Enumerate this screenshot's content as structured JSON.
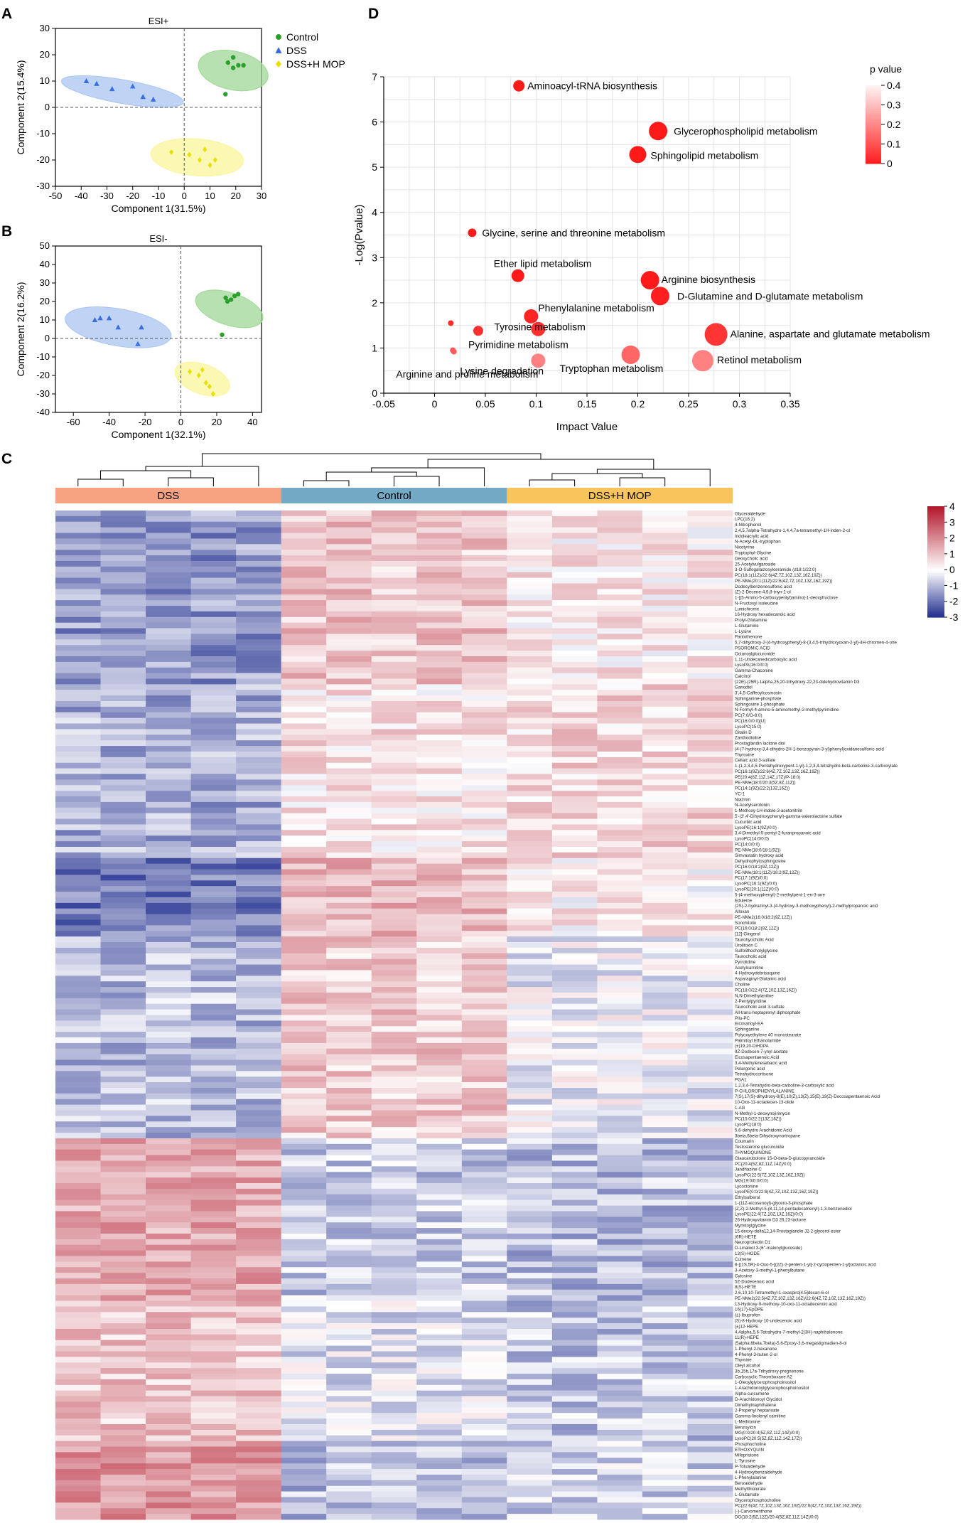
{
  "panels": {
    "a": {
      "label": "A",
      "chart_data": {
        "type": "scatter",
        "title": "ESI+",
        "xlabel": "Component 1(31.5%)",
        "ylabel": "Component 2(15.4%)",
        "xlim": [
          -50,
          30
        ],
        "ylim": [
          -30,
          30
        ],
        "xticks": [
          -50,
          -40,
          -30,
          -20,
          -10,
          0,
          10,
          20,
          30
        ],
        "yticks": [
          -30,
          -20,
          -10,
          0,
          10,
          20,
          30
        ],
        "series": [
          {
            "name": "Control",
            "color": "#2ca02c",
            "ellipse_color": "#9fd796",
            "marker": "circle",
            "x": [
              17,
              19,
              21,
              23,
              19,
              16
            ],
            "y": [
              17,
              15,
              16,
              16,
              19,
              5
            ],
            "ellipse": {
              "cx": 19,
              "cy": 14,
              "rx": 7.5,
              "ry": 13.5,
              "angle": 78
            }
          },
          {
            "name": "DSS",
            "color": "#3b6fe0",
            "ellipse_color": "#a9c5f2",
            "marker": "triangle",
            "x": [
              -38,
              -34,
              -28,
              -20,
              -16,
              -12
            ],
            "y": [
              10,
              9,
              7,
              8,
              4,
              3
            ],
            "ellipse": {
              "cx": -24,
              "cy": 6,
              "rx": 24,
              "ry": 4.5,
              "angle": -10
            }
          },
          {
            "name": "DSS+H MOP",
            "color": "#e8e000",
            "ellipse_color": "#faf59a",
            "marker": "diamond",
            "x": [
              -5,
              2,
              6,
              8,
              10,
              12
            ],
            "y": [
              -17,
              -18,
              -20,
              -16,
              -22,
              -20
            ],
            "ellipse": {
              "cx": 5,
              "cy": -19,
              "rx": 18,
              "ry": 7,
              "angle": -5
            }
          }
        ]
      }
    },
    "b": {
      "label": "B",
      "chart_data": {
        "type": "scatter",
        "title": "ESI-",
        "xlabel": "Component 1(32.1%)",
        "ylabel": "Component 2(16.2%)",
        "xlim": [
          -70,
          45
        ],
        "ylim": [
          -40,
          50
        ],
        "xticks": [
          -60,
          -40,
          -20,
          0,
          20,
          40
        ],
        "yticks": [
          -40,
          -30,
          -20,
          -10,
          0,
          10,
          20,
          30,
          40,
          50
        ],
        "series": [
          {
            "name": "Control",
            "color": "#2ca02c",
            "ellipse_color": "#9fd796",
            "marker": "circle",
            "x": [
              25,
              28,
              30,
              32,
              26,
              23
            ],
            "y": [
              22,
              21,
              23,
              24,
              20,
              2
            ],
            "ellipse": {
              "cx": 27,
              "cy": 16,
              "rx": 9,
              "ry": 19,
              "angle": 72
            }
          },
          {
            "name": "DSS",
            "color": "#3b6fe0",
            "ellipse_color": "#a9c5f2",
            "marker": "triangle",
            "x": [
              -48,
              -45,
              -40,
              -35,
              -22,
              -24
            ],
            "y": [
              10,
              11,
              11,
              6,
              6,
              -3
            ],
            "ellipse": {
              "cx": -35,
              "cy": 6,
              "rx": 30,
              "ry": 10,
              "angle": -10
            }
          },
          {
            "name": "DSS+H MOP",
            "color": "#e8e000",
            "ellipse_color": "#faf59a",
            "marker": "diamond",
            "x": [
              5,
              10,
              12,
              16,
              14,
              18
            ],
            "y": [
              -18,
              -20,
              -17,
              -26,
              -24,
              -30
            ],
            "ellipse": {
              "cx": 12,
              "cy": -22,
              "rx": 16,
              "ry": 8,
              "angle": -20
            }
          }
        ]
      }
    },
    "d": {
      "label": "D",
      "chart_data": {
        "type": "scatter",
        "xlabel": "Impact Value",
        "ylabel": "-Log(Pvalue)",
        "xlim": [
          -0.05,
          0.35
        ],
        "ylim": [
          0,
          7
        ],
        "xticks": [
          -0.05,
          0,
          0.05,
          0.1,
          0.15,
          0.2,
          0.25,
          0.3,
          0.35
        ],
        "yticks": [
          0,
          1,
          2,
          3,
          4,
          5,
          6,
          7
        ],
        "colorbar": {
          "title": "p value",
          "ticks": [
            0.4,
            0.3,
            0.2,
            0.1,
            0
          ],
          "low_color": "#ff1a1a",
          "high_color": "#fff2f2"
        },
        "points": [
          {
            "name": "Aminoacyl-tRNA biosynthesis",
            "impact": 0.083,
            "logp": 6.8,
            "p": 0.0,
            "size": 6
          },
          {
            "name": "Glycerophospholipid metabolism",
            "impact": 0.22,
            "logp": 5.8,
            "p": 0.0,
            "size": 11
          },
          {
            "name": "Sphingolipid metabolism",
            "impact": 0.2,
            "logp": 5.28,
            "p": 0.0,
            "size": 10
          },
          {
            "name": "Glycine, serine and threonine metabolism",
            "impact": 0.037,
            "logp": 3.55,
            "p": 0.0,
            "size": 4
          },
          {
            "name": "Ether lipid metabolism",
            "impact": 0.082,
            "logp": 2.6,
            "p": 0.0,
            "size": 7
          },
          {
            "name": "Arginine biosynthesis",
            "impact": 0.212,
            "logp": 2.5,
            "p": 0.0,
            "size": 11
          },
          {
            "name": "D-Glutamine and D-glutamate metabolism",
            "impact": 0.222,
            "logp": 2.15,
            "p": 0.01,
            "size": 11
          },
          {
            "name": "Phenylalanine metabolism",
            "impact": 0.095,
            "logp": 1.7,
            "p": 0.02,
            "size": 8
          },
          {
            "name": "Tyrosine metabolism",
            "impact": 0.102,
            "logp": 1.42,
            "p": 0.04,
            "size": 8
          },
          {
            "name": "Alanine, aspartate and glutamate metabolism",
            "impact": 0.277,
            "logp": 1.3,
            "p": 0.05,
            "size": 14
          },
          {
            "name": "Pyrimidine metabolism",
            "impact": 0.043,
            "logp": 1.38,
            "p": 0.04,
            "size": 5
          },
          {
            "name": "Tryptophan metabolism",
            "impact": 0.193,
            "logp": 0.85,
            "p": 0.14,
            "size": 11
          },
          {
            "name": "Retinol metabolism",
            "impact": 0.264,
            "logp": 0.72,
            "p": 0.19,
            "size": 13
          },
          {
            "name": "Arginine and proline metabolism",
            "impact": 0.102,
            "logp": 0.72,
            "p": 0.19,
            "size": 8
          },
          {
            "name": "Lysine degradation",
            "impact": 0.018,
            "logp": 0.95,
            "p": 0.11,
            "size": 2
          },
          {
            "name": "",
            "impact": 0.016,
            "logp": 1.55,
            "p": 0.03,
            "size": 2
          },
          {
            "name": "",
            "impact": 0.019,
            "logp": 0.92,
            "p": 0.12,
            "size": 2
          }
        ]
      }
    },
    "c": {
      "label": "C",
      "chart_data": {
        "type": "heatmap",
        "groups": [
          {
            "name": "DSS",
            "color": "#f7a382",
            "columns": 5
          },
          {
            "name": "Control",
            "color": "#74a9c6",
            "columns": 5
          },
          {
            "name": "DSS+H MOP",
            "color": "#f9c45b",
            "columns": 5
          }
        ],
        "color_scale": {
          "min": -3,
          "max": 4,
          "ticks": [
            4,
            3,
            2,
            1,
            0,
            -1,
            -2,
            -3
          ],
          "low_color": "#1c2a8c",
          "mid_color": "#ffffff",
          "high_color": "#b2182b"
        },
        "profiles": [
          [
            -1.4,
            1.0,
            0.4
          ],
          [
            -1.1,
            0.5,
            0.7
          ],
          [
            -1.8,
            1.2,
            0.3
          ],
          [
            -0.9,
            0.9,
            -0.2
          ],
          [
            1.5,
            -0.7,
            -0.9
          ],
          [
            1.0,
            -0.4,
            -0.8
          ],
          [
            1.8,
            -0.9,
            -0.6
          ]
        ],
        "section_breaks": [
          0.0,
          0.17,
          0.34,
          0.42,
          0.62,
          0.78,
          0.92,
          1.0
        ],
        "rows": [
          "Glyceraldehyde",
          "LPC(18:2)",
          "4-Nitrophenol",
          "2,4,5,7alpha-Tetrahydro-1,4,4,7a-tetramethyl-1H-inden-2-ol",
          "Indoleacrylic acid",
          "N-Acetyl-DL-tryptophan",
          "Nicotyrine",
          "Tryptophyl-Glycine",
          "Deoxycholic acid",
          "25-Acetylvulgaroside",
          "3-O-Sulfogalactosylceramide (d18:1/22:0)",
          "PC(18:1(11Z)/22:6(4Z,7Z,10Z,13Z,16Z,19Z))",
          "PE-NMe(20:1(11Z)/22:6(4Z,7Z,10Z,13Z,16Z,19Z))",
          "Dodecylbenzenesulfonic acid",
          "(Z)-2-Decene-4,6,8-triyn-1-ol",
          "1-[(5-Amino-5-carboxypentyl)amino]-1-deoxyfructose",
          "N-Fructosyl isoleucine",
          "Lumichrome",
          "16-Hydroxy hexadecanoic acid",
          "Prolyl-Glutamine",
          "L-Glutamine",
          "L-Lysine",
          "Pantothenone",
          "5,7-dihydroxy-2-(4-hydroxyphenyl)-8-(3,4,5-trihydroxyoxan-2-yl)-4H-chromen-4-one",
          "PSOROMIC ACID",
          "Octanoylglucuronide",
          "1,11-Undecanedicarboxylic acid",
          "LysoPA(16:0/0:0)",
          "Gamma-Chaconine",
          "Calcitrol",
          "(22E)-(25R)-1alpha,25,20-trihydroxy-22,23-didehydrovitamin D3",
          "Ganodiol",
          "3',4,5-Caffeoylcosmosin",
          "Sphinganine-phosphate",
          "Sphingosine 1-phosphate",
          "N-Formyl-4-amino-5-aminomethyl-2-methylpyrimidine",
          "PC(7:0/O-8:0)",
          "PC(16:0/0:0)[U]",
          "LysoPC(15:0)",
          "Gitalin D",
          "Zanthodioline",
          "Prostaglandin lactone diol",
          "(4-(7-hydroxy-3,4-dihydro-2H-1-benzopyran-3-yl)phenyl)oxidanesulfonic acid",
          "Thyroxine",
          "Cellaic acid 3-sulfate",
          "1-(1,2,3,4,5-Pentahydroxypent-1-yl)-1,2,3,4-tetrahydro-beta-carboline-3-carboxylate",
          "PC(16:1(9Z)/22:6(4Z,7Z,10Z,13Z,16Z,19Z))",
          "PE(20:4(8Z,11Z,14Z,17Z)/P-18:0)",
          "PE-NMe(18:0/20:3(5Z,8Z,11Z))",
          "PC(14:1(9Z)/22:2(13Z,16Z))",
          "YC-1",
          "Niazinin",
          "N-Acetylserotonin",
          "1-Methoxy-1H-indole-3-acetonitrile",
          "5'-(3',4'-Dihydroxyphenyl)-gamma-valerolactone sulfate",
          "Cucurbic acid",
          "LysoPE(16:1(9Z)/0:0)",
          "3,4-Dimethyl-5-pentyl-2-furanpropanoic acid",
          "LysoPC(14:0/0:0)",
          "PC(14:0/0:0)",
          "PE-NMe(18:0/18:1(9Z))",
          "Simvastatin hydroxy acid",
          "Dehydrophytosphingosine",
          "PC(16:0/18:2(9Z,12Z))",
          "PE-NMe(18:1(11Z)/18:2(9Z,12Z))",
          "PC(17:1(9Z)/0:0)",
          "LysoPC(16:1(9Z)/0:0)",
          "LysoPE(20:1(11Z)/0:0)",
          "5-(4-methoxyphenyl)-2-methylpent-1-en-3-one",
          "Eduleine",
          "(2S)-2-hydrazinyl-3-(4-hydroxy-3-methoxyphenyl)-2-methylpropanoic acid",
          "Alloxan",
          "PE-NMe2(16:0/18:2(9Z,12Z))",
          "Sonchitolin",
          "PC(16:0/18:2(9Z,12Z))",
          "[12]-Gingerol",
          "Taurohyocholic Acid",
          "Urolitoxin C",
          "Sulfolithocholylglycine",
          "Taurocholic acid",
          "Pyrrolidine",
          "Acetylcarnitine",
          "4-Hydroxydebrisoquine",
          "Asparaginyl-Glutamic acid",
          "Choline",
          "PC(18:0/22:4(7Z,10Z,13Z,16Z))",
          "N,N-Dimethylaniline",
          "2-Pentylpyridine",
          "Taurocholic acid 3-sulfate",
          "All-trans-heptaprenyl diphosphate",
          "Pilu-PC",
          "Eicosanoyl-EA",
          "Sphinganine",
          "Polyoxyethylene 40 monostearate",
          "Palmitoyl Ethanolamide",
          "(±)19,20-DiHDPA",
          "9Z-Dodecen-7-ynyl acetate",
          "Eicosapentaenoic Acid",
          "3,4-Methylenesebacic acid",
          "Pelargonic acid",
          "Tetrahydrocortisone",
          "PGA1",
          "1,2,3,4-Tetrahydro-beta-carboline-3-carboxylic acid",
          "P-CHLOROPHENYLALANINE",
          "7(S),17(S)-dihydroxy-8(E),10(Z),13(Z),15(E),19(Z)-Docosapentaenoic Acid",
          "10-Oxo-11-octadecen-13-olide",
          "1-AG",
          "N-Methyl-1-deoxynojirimycin",
          "PC(15:0/22:2(13Z,16Z))",
          "LysoPC(18:0)",
          "5,6-dehydro Arachidonic Acid",
          "3beta,6beta-Dihydroxynortropane",
          "Coumarin",
          "Testosterone glucuronide",
          "THYMOQUINONE",
          "Glaucarubolone 15-O-beta-D-glucopyranoside",
          "PC(20:4(5Z,8Z,11Z,14Z)/0:0)",
          "Jandhazine C",
          "LysoPC(22:5(7Z,10Z,13Z,16Z,19Z))",
          "MG(19:0/0:0/0:0)",
          "Lycoctonine",
          "LysoPE(0:0/22:6(4Z,7Z,10Z,13Z,16Z,19Z))",
          "Ethylsulberol",
          "1-(11Z-eicosenoyl)-glycero-3-phosphate",
          "(Z,Z)-2-Methyl-5-(8,11,14-pentadecatrienyl)-1,3-benzenediol",
          "LysoPE(22:4(7Z,10Z,13Z,16Z)/0:0)",
          "26-Hydroxyvitamin D3 26,23-lactone",
          "Myristoylglycine",
          "15-deoxy-delta12,14-Prostaglandin J2-2-glycerol ester",
          "(6R)-HETE",
          "Neuroprotectin D1",
          "D-Linalool 3-(6''-malonylglucoside)",
          "13(S)-HODE",
          "Cumene",
          "8-[(1S,5R)-4-Oxo-5-[(2Z)-2-penten-1-yl]-2-cyclopenten-1-yl]octanoic acid",
          "3-Acetoxy-3-methyl-1-phenylbutane",
          "Cytosine",
          "5Z-Dodecenoic acid",
          "8(S)-HETE",
          "2,6,10,10-Tetramethyl-1-oxaspiro[4.5]decan-6-ol",
          "PE-NMe2(22:5(4Z,7Z,10Z,13Z,16Z)/22:6(4Z,7Z,10Z,13Z,16Z,19Z))",
          "13-Hydroxy-9-methoxy-10-oxo-11-octadecenoic acid",
          "16(17)-EpDPE",
          "(±)-Ibuprofen",
          "(S)-8-Hydroxy-10-undecenoic acid",
          "(±)12-HEPE",
          "4,4alpha,5,6-Tetrahydro-7-methyl-2(3H)-naphthalenone",
          "11(R)-HEPE",
          "(5alpha,6beta,7beta)-5,6-Epoxy-3,6-megastigmadien-8-ol",
          "1-Phenyl-2-hexanone",
          "4-Phenyl-3-buten-2-ol",
          "Thymine",
          "Oleyl alcohol",
          "3b,15b,17a-Trihydroxy-pregnenone",
          "Carbocyclic Thromboxane A2",
          "1-Oleoylglycerophosphoinositol",
          "1-Arachidonoylglycerophosphoinositol",
          "Alpha-curcumene",
          "D-Arachidonoyl Glycidol",
          "Dimethylnaphthalene",
          "2-Propenyl heptanoate",
          "Gamma-linolenyl carnitine",
          "L-Methionine",
          "Benzoylcin",
          "MG(0:0/20:4(5Z,8Z,11Z,14Z)/0:0)",
          "LysoPC(20:5(5Z,8Z,11Z,14Z,17Z))",
          "Phosphocholine",
          "ETHOXYQUIN",
          "Mifepristone",
          "L-Tyrosine",
          "P-Tolualdehyde",
          "4-Hydroxybenzaldehyde",
          "L-Phenylalanine",
          "Benzaldehyde",
          "Methylthiolurate",
          "L-Glutamate",
          "Glycerophosphocholine",
          "PC(22:6(4Z,7Z,10Z,13Z,16Z,19Z)/22:6(4Z,7Z,10Z,13Z,16Z,19Z))",
          "(-)-Carvomenthone",
          "DG(18:2(9Z,12Z)/20:4(5Z,8Z,11Z,14Z)/0:0)"
        ]
      }
    }
  }
}
